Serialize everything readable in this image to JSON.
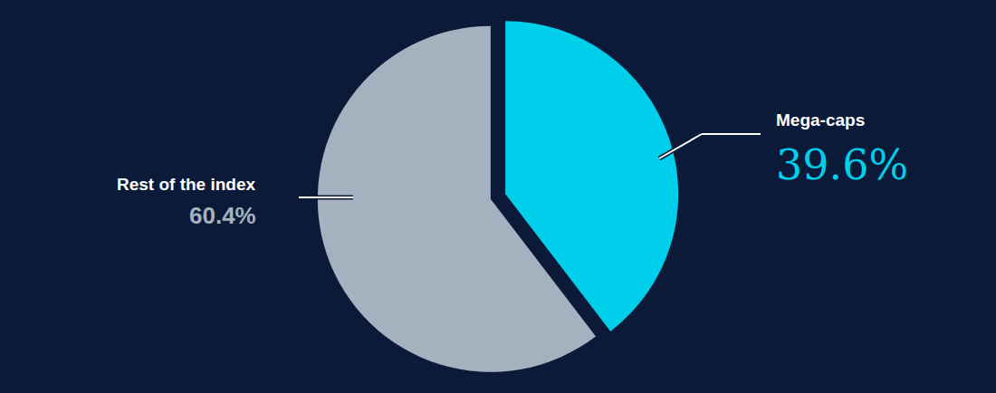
{
  "chart_data": {
    "type": "pie",
    "categories": [
      "Mega-caps",
      "Rest of the index"
    ],
    "values": [
      39.6,
      60.4
    ],
    "value_labels": [
      "39.6%",
      "60.4%"
    ],
    "colors": [
      "#00CFEB",
      "#A5B1BE"
    ],
    "data_labels": true
  }
}
